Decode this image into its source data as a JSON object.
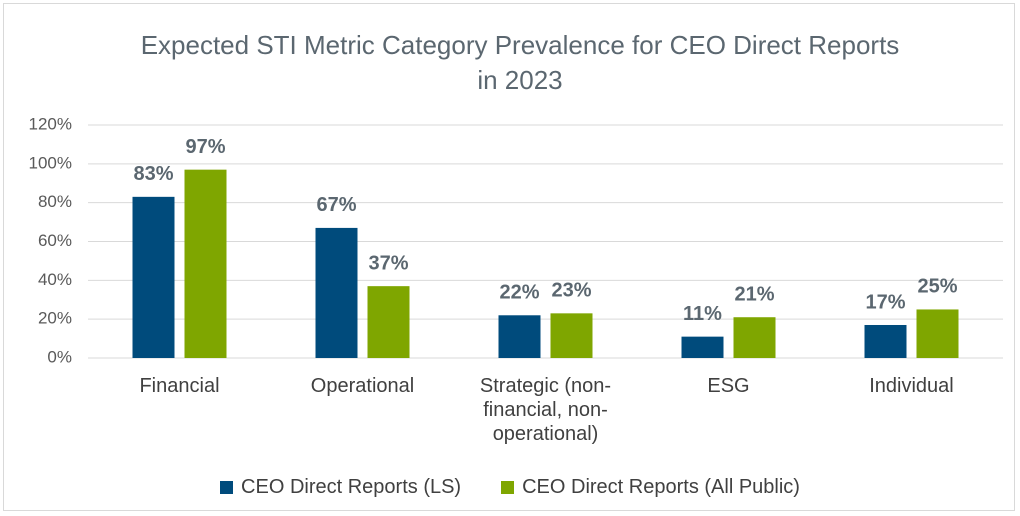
{
  "chart_data": {
    "type": "bar",
    "title": "Expected STI Metric Category Prevalence for CEO Direct Reports in 2023",
    "categories": [
      "Financial",
      "Operational",
      "Strategic (non-financial, non-operational)",
      "ESG",
      "Individual"
    ],
    "series": [
      {
        "name": "CEO Direct Reports (LS)",
        "color": "#004b7c",
        "values": [
          83,
          67,
          22,
          11,
          17
        ],
        "value_labels": [
          "83%",
          "67%",
          "22%",
          "11%",
          "17%"
        ]
      },
      {
        "name": "CEO Direct Reports (All Public)",
        "color": "#7fa600",
        "values": [
          97,
          37,
          23,
          21,
          25
        ],
        "value_labels": [
          "97%",
          "37%",
          "23%",
          "21%",
          "25%"
        ]
      }
    ],
    "ylim": [
      0,
      120
    ],
    "yticks": [
      {
        "value": 0,
        "label": "0%"
      },
      {
        "value": 20,
        "label": "20%"
      },
      {
        "value": 40,
        "label": "40%"
      },
      {
        "value": 60,
        "label": "60%"
      },
      {
        "value": 80,
        "label": "80%"
      },
      {
        "value": 100,
        "label": "100%"
      },
      {
        "value": 120,
        "label": "120%"
      }
    ],
    "grid": true,
    "legend": "bottom"
  }
}
